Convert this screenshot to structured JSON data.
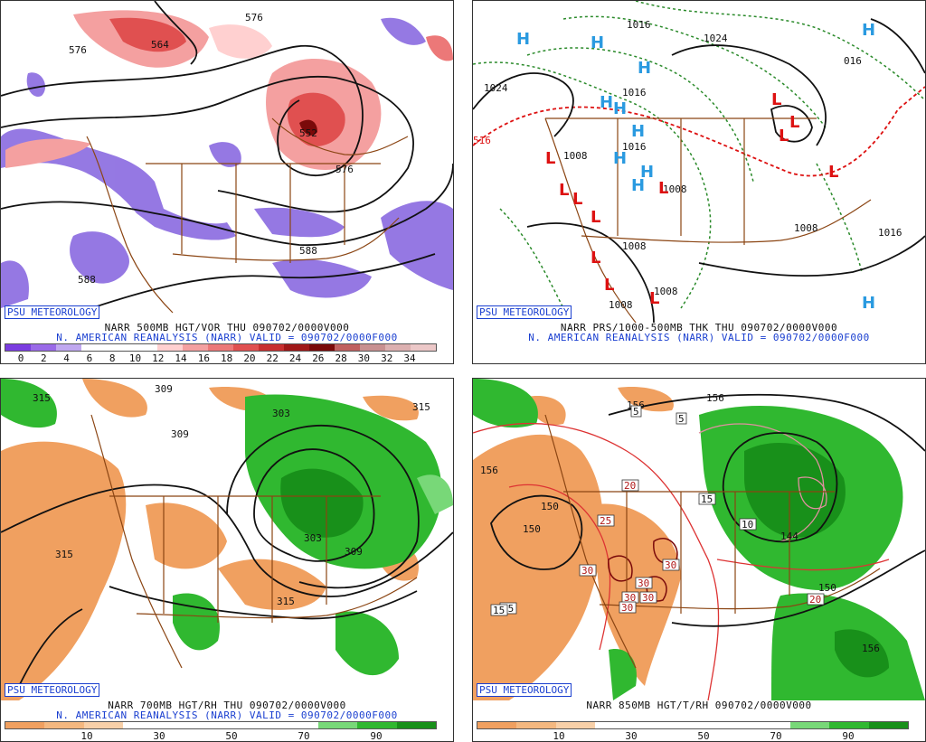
{
  "panels": [
    {
      "id": "p1",
      "credit": "PSU METEOROLOGY",
      "line1": "NARR 500MB HGT/VOR THU 090702/0000V000",
      "line2": "N. AMERICAN REANALYSIS (NARR) VALID = 090702/0000F000",
      "contour_labels": [
        "576",
        "564",
        "552",
        "576",
        "588",
        "588",
        "576"
      ],
      "colorbar": {
        "colors": [
          "#7a3ce0",
          "#9a6ae8",
          "#c0a8f0",
          "#ffffff",
          "#ffffff",
          "#ffffff",
          "#ffd0d0",
          "#f4a0a0",
          "#ec7878",
          "#e05050",
          "#c83030",
          "#a01818",
          "#7a0a0a",
          "#c06060",
          "#c89090",
          "#dcb0b0",
          "#ecc8c8"
        ],
        "ticks": [
          "0",
          "2",
          "4",
          "6",
          "8",
          "10",
          "12",
          "14",
          "16",
          "18",
          "20",
          "22",
          "24",
          "26",
          "28",
          "30",
          "32",
          "34"
        ]
      }
    },
    {
      "id": "p2",
      "credit": "PSU METEOROLOGY",
      "line1": "NARR PRS/1000-500MB THK THU 090702/0000V000",
      "line2": "N. AMERICAN REANALYSIS (NARR) VALID = 090702/0000F000",
      "contour_labels": [
        "1016",
        "1024",
        "1024",
        "1016",
        "016",
        "1008",
        "1016",
        "1008",
        "1008",
        "1008",
        "1008",
        "1016",
        "516",
        "1008"
      ],
      "high_symbol": "H",
      "low_symbol": "L"
    },
    {
      "id": "p3",
      "credit": "PSU METEOROLOGY",
      "line1": "NARR 700MB HGT/RH THU 090702/0000V000",
      "line2": "N. AMERICAN REANALYSIS (NARR) VALID = 090702/0000F000",
      "contour_labels": [
        "315",
        "303",
        "309",
        "315",
        "315",
        "309",
        "303",
        "309",
        "315"
      ],
      "colorbar": {
        "colors": [
          "#f0a060",
          "#f4b880",
          "#f8d0a8",
          "#ffffff",
          "#ffffff",
          "#ffffff",
          "#ffffff",
          "#ffffff",
          "#78d878",
          "#30b830",
          "#18901a"
        ],
        "ticks": [
          "10",
          "30",
          "50",
          "70",
          "90"
        ]
      }
    },
    {
      "id": "p4",
      "credit": "PSU METEOROLOGY",
      "line1": "NARR 850MB HGT/T/RH 090702/0000V000",
      "line2": "",
      "contour_labels": [
        "156",
        "156",
        "150",
        "144",
        "150",
        "156",
        "156",
        "150"
      ],
      "temp_boxes": [
        "15",
        "5",
        "5",
        "15",
        "25",
        "20",
        "30",
        "30",
        "30",
        "30",
        "30",
        "30",
        "10",
        "20",
        "15"
      ],
      "colorbar": {
        "colors": [
          "#f0a060",
          "#f4b880",
          "#f8d0a8",
          "#ffffff",
          "#ffffff",
          "#ffffff",
          "#ffffff",
          "#ffffff",
          "#78d878",
          "#30b830",
          "#18901a"
        ],
        "ticks": [
          "10",
          "30",
          "50",
          "70",
          "90"
        ]
      }
    }
  ]
}
